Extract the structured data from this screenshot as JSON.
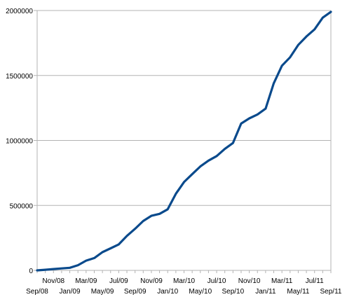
{
  "chart_data": {
    "type": "line",
    "title": "",
    "xlabel": "",
    "ylabel": "",
    "ylim": [
      0,
      2000000
    ],
    "yticks": [
      0,
      500000,
      1000000,
      1500000,
      2000000
    ],
    "ytick_labels": [
      "0",
      "500000",
      "1000000",
      "1500000",
      "2000000"
    ],
    "grid": true,
    "legend": "none",
    "x_tick_labels_upper": [
      "Nov/08",
      "Mar/09",
      "Jul/09",
      "Nov/09",
      "Mar/10",
      "Jul/10",
      "Nov/10",
      "Mar/11",
      "Jul/11"
    ],
    "x_tick_labels_lower": [
      "Sep/08",
      "Jan/09",
      "May/09",
      "Sep/09",
      "Jan/10",
      "May/10",
      "Sep/10",
      "Jan/11",
      "May/11",
      "Sep/11"
    ],
    "series": [
      {
        "color": "#0a4a8c",
        "x": [
          "Sep/08",
          "Oct/08",
          "Nov/08",
          "Dec/08",
          "Jan/09",
          "Feb/09",
          "Mar/09",
          "Apr/09",
          "May/09",
          "Jun/09",
          "Jul/09",
          "Aug/09",
          "Sep/09",
          "Oct/09",
          "Nov/09",
          "Dec/09",
          "Jan/10",
          "Feb/10",
          "Mar/10",
          "Apr/10",
          "May/10",
          "Jun/10",
          "Jul/10",
          "Aug/10",
          "Sep/10",
          "Oct/10",
          "Nov/10",
          "Dec/10",
          "Jan/11",
          "Feb/11",
          "Mar/11",
          "Apr/11",
          "May/11",
          "Jun/11",
          "Jul/11",
          "Aug/11",
          "Sep/11"
        ],
        "values": [
          0,
          5000,
          10000,
          15000,
          20000,
          40000,
          75000,
          95000,
          140000,
          170000,
          200000,
          265000,
          320000,
          380000,
          420000,
          435000,
          470000,
          590000,
          680000,
          740000,
          800000,
          845000,
          880000,
          935000,
          980000,
          1130000,
          1170000,
          1200000,
          1245000,
          1440000,
          1575000,
          1640000,
          1735000,
          1800000,
          1855000,
          1945000,
          1990000
        ]
      }
    ]
  }
}
